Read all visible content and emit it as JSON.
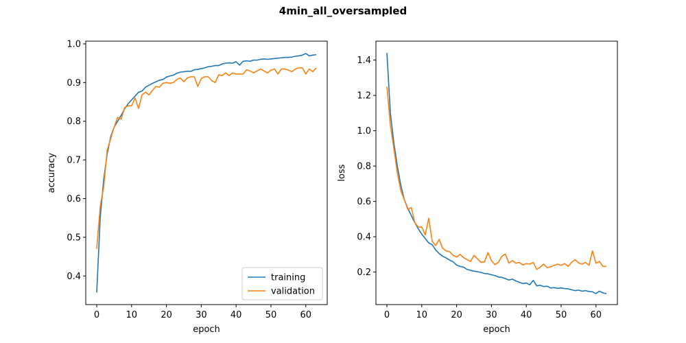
{
  "figure": {
    "title": "4min_all_oversampled"
  },
  "colors": {
    "training": "#1f77b4",
    "validation": "#ff7f0e",
    "axes": "#000000",
    "legend_border": "#cccccc"
  },
  "chart_data": [
    {
      "type": "line",
      "title": "",
      "xlabel": "epoch",
      "ylabel": "accuracy",
      "xlim": [
        -3.15,
        66.15
      ],
      "ylim": [
        0.326,
        1.007
      ],
      "xticks": [
        0,
        10,
        20,
        30,
        40,
        50,
        60
      ],
      "yticks": [
        0.4,
        0.5,
        0.6,
        0.7,
        0.8,
        0.9,
        1.0
      ],
      "ytick_labels": [
        "0.4",
        "0.5",
        "0.6",
        "0.7",
        "0.8",
        "0.9",
        "1.0"
      ],
      "legend": {
        "placement": "lower-right",
        "entries": [
          "training",
          "validation"
        ]
      },
      "series": [
        {
          "name": "training",
          "color_key": "training",
          "y": [
            0.357,
            0.55,
            0.65,
            0.715,
            0.76,
            0.785,
            0.8,
            0.815,
            0.832,
            0.845,
            0.855,
            0.865,
            0.875,
            0.878,
            0.888,
            0.893,
            0.898,
            0.902,
            0.906,
            0.908,
            0.914,
            0.917,
            0.919,
            0.924,
            0.927,
            0.928,
            0.929,
            0.929,
            0.933,
            0.934,
            0.936,
            0.938,
            0.941,
            0.942,
            0.944,
            0.944,
            0.948,
            0.95,
            0.951,
            0.95,
            0.954,
            0.945,
            0.955,
            0.956,
            0.955,
            0.958,
            0.958,
            0.96,
            0.961,
            0.96,
            0.961,
            0.962,
            0.963,
            0.964,
            0.965,
            0.965,
            0.966,
            0.968,
            0.969,
            0.971,
            0.975,
            0.969,
            0.971,
            0.972
          ]
        },
        {
          "name": "validation",
          "color_key": "validation",
          "y": [
            0.47,
            0.58,
            0.63,
            0.725,
            0.755,
            0.785,
            0.81,
            0.805,
            0.835,
            0.84,
            0.84,
            0.86,
            0.833,
            0.868,
            0.875,
            0.868,
            0.88,
            0.89,
            0.888,
            0.898,
            0.9,
            0.898,
            0.9,
            0.908,
            0.912,
            0.902,
            0.912,
            0.915,
            0.915,
            0.89,
            0.91,
            0.915,
            0.915,
            0.905,
            0.9,
            0.92,
            0.918,
            0.925,
            0.918,
            0.925,
            0.922,
            0.922,
            0.922,
            0.933,
            0.93,
            0.925,
            0.93,
            0.935,
            0.93,
            0.925,
            0.932,
            0.935,
            0.922,
            0.935,
            0.935,
            0.932,
            0.928,
            0.935,
            0.938,
            0.938,
            0.922,
            0.935,
            0.928,
            0.938
          ]
        }
      ]
    },
    {
      "type": "line",
      "title": "",
      "xlabel": "epoch",
      "ylabel": "loss",
      "xlim": [
        -3.15,
        66.15
      ],
      "ylim": [
        0.016,
        1.507
      ],
      "xticks": [
        0,
        10,
        20,
        30,
        40,
        50,
        60
      ],
      "yticks": [
        0.2,
        0.4,
        0.6,
        0.8,
        1.0,
        1.2,
        1.4
      ],
      "ytick_labels": [
        "0.2",
        "0.4",
        "0.6",
        "0.8",
        "1.0",
        "1.2",
        "1.4"
      ],
      "series": [
        {
          "name": "training",
          "color_key": "training",
          "y": [
            1.44,
            1.1,
            0.93,
            0.8,
            0.69,
            0.61,
            0.56,
            0.52,
            0.48,
            0.445,
            0.415,
            0.39,
            0.365,
            0.355,
            0.325,
            0.305,
            0.29,
            0.28,
            0.268,
            0.258,
            0.24,
            0.232,
            0.228,
            0.215,
            0.21,
            0.205,
            0.202,
            0.198,
            0.192,
            0.19,
            0.185,
            0.18,
            0.172,
            0.17,
            0.163,
            0.155,
            0.16,
            0.15,
            0.142,
            0.135,
            0.138,
            0.128,
            0.153,
            0.122,
            0.125,
            0.118,
            0.12,
            0.11,
            0.112,
            0.108,
            0.11,
            0.107,
            0.105,
            0.1,
            0.095,
            0.098,
            0.092,
            0.095,
            0.09,
            0.088,
            0.078,
            0.092,
            0.082,
            0.078
          ]
        },
        {
          "name": "validation",
          "color_key": "validation",
          "y": [
            1.25,
            1.03,
            0.9,
            0.76,
            0.66,
            0.61,
            0.555,
            0.565,
            0.48,
            0.455,
            0.455,
            0.41,
            0.505,
            0.375,
            0.35,
            0.385,
            0.335,
            0.32,
            0.315,
            0.295,
            0.285,
            0.3,
            0.282,
            0.27,
            0.26,
            0.295,
            0.275,
            0.255,
            0.258,
            0.31,
            0.265,
            0.242,
            0.255,
            0.29,
            0.302,
            0.25,
            0.265,
            0.25,
            0.255,
            0.24,
            0.248,
            0.245,
            0.255,
            0.215,
            0.228,
            0.245,
            0.225,
            0.23,
            0.238,
            0.245,
            0.238,
            0.248,
            0.232,
            0.255,
            0.27,
            0.252,
            0.245,
            0.255,
            0.238,
            0.32,
            0.25,
            0.26,
            0.232,
            0.232
          ]
        }
      ]
    }
  ]
}
